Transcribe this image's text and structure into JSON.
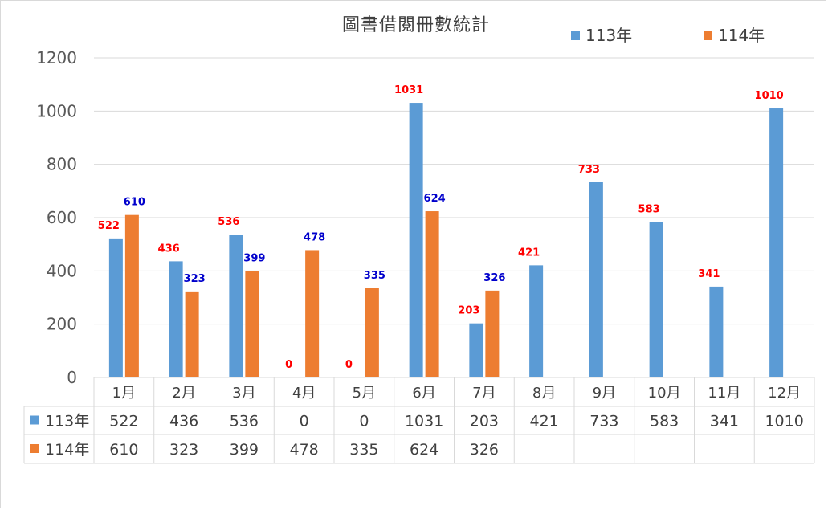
{
  "chart_data": {
    "type": "bar",
    "title": "圖書借閱冊數統計",
    "categories": [
      "1月",
      "2月",
      "3月",
      "4月",
      "5月",
      "6月",
      "7月",
      "8月",
      "9月",
      "10月",
      "11月",
      "12月"
    ],
    "series": [
      {
        "name": "113年",
        "color": "#5b9bd5",
        "label_color": "#ff0000",
        "values": [
          522,
          436,
          536,
          0,
          0,
          1031,
          203,
          421,
          733,
          583,
          341,
          1010
        ],
        "table_values": [
          "522",
          "436",
          "536",
          "0",
          "0",
          "1031",
          "203",
          "421",
          "733",
          "583",
          "341",
          "1010"
        ]
      },
      {
        "name": "114年",
        "color": "#ed7d31",
        "label_color": "#0000cc",
        "values": [
          610,
          323,
          399,
          478,
          335,
          624,
          326,
          null,
          null,
          null,
          null,
          null
        ],
        "table_values": [
          "610",
          "323",
          "399",
          "478",
          "335",
          "624",
          "326",
          "",
          "",
          "",
          "",
          ""
        ]
      }
    ],
    "ylim": [
      0,
      1200
    ],
    "yticks": [
      0,
      200,
      400,
      600,
      800,
      1000,
      1200
    ],
    "grid": true,
    "legend": "top-right",
    "data_table": true
  }
}
